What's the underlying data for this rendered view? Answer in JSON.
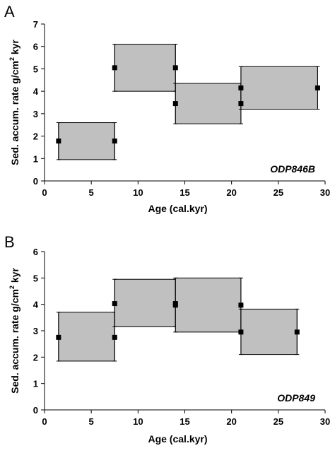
{
  "chart_data": [
    {
      "type": "box",
      "panel": "A",
      "site_label": "ODP846B",
      "xlabel": "Age (cal.kyr)",
      "ylabel_main": "Sed. accum. rate g/cm",
      "ylabel_sup": "2",
      "ylabel_tail": " kyr",
      "xlim": [
        0,
        30
      ],
      "ylim": [
        0,
        7
      ],
      "x_ticks": [
        "0",
        "5",
        "10",
        "15",
        "20",
        "25",
        "30"
      ],
      "y_ticks": [
        "0",
        "1",
        "2",
        "3",
        "4",
        "5",
        "6",
        "7"
      ],
      "boxes": [
        {
          "x0": 1.5,
          "x1": 7.5,
          "low": 0.95,
          "high": 2.6,
          "mid": 1.78
        },
        {
          "x0": 7.5,
          "x1": 14.0,
          "low": 4.0,
          "high": 6.1,
          "mid": 5.05
        },
        {
          "x0": 14.0,
          "x1": 21.0,
          "low": 2.55,
          "high": 4.35,
          "mid": 3.45
        },
        {
          "x0": 21.0,
          "x1": 29.2,
          "low": 3.2,
          "high": 5.1,
          "mid": 4.15
        }
      ],
      "points": [
        {
          "x": 1.5,
          "y": 1.78
        },
        {
          "x": 7.5,
          "y": 1.78
        },
        {
          "x": 7.5,
          "y": 5.05
        },
        {
          "x": 14.0,
          "y": 5.05
        },
        {
          "x": 14.0,
          "y": 3.45
        },
        {
          "x": 21.0,
          "y": 3.45
        },
        {
          "x": 21.0,
          "y": 4.15
        },
        {
          "x": 29.2,
          "y": 4.15
        }
      ]
    },
    {
      "type": "box",
      "panel": "B",
      "site_label": "ODP849",
      "xlabel": "Age (cal.kyr)",
      "ylabel_main": "Sed. accum. rate g/cm",
      "ylabel_sup": "2",
      "ylabel_tail": " kyr",
      "xlim": [
        0,
        30
      ],
      "ylim": [
        0,
        6
      ],
      "x_ticks": [
        "0",
        "5",
        "10",
        "15",
        "20",
        "25",
        "30"
      ],
      "y_ticks": [
        "0",
        "1",
        "2",
        "3",
        "4",
        "5",
        "6"
      ],
      "boxes": [
        {
          "x0": 1.5,
          "x1": 7.5,
          "low": 1.85,
          "high": 3.7,
          "mid": 2.75
        },
        {
          "x0": 7.5,
          "x1": 14.0,
          "low": 3.15,
          "high": 4.95,
          "mid": 4.03
        },
        {
          "x0": 14.0,
          "x1": 21.0,
          "low": 2.95,
          "high": 5.0,
          "mid": 3.97
        },
        {
          "x0": 21.0,
          "x1": 27.0,
          "low": 2.1,
          "high": 3.82,
          "mid": 2.95
        }
      ],
      "points": [
        {
          "x": 1.5,
          "y": 2.75
        },
        {
          "x": 7.5,
          "y": 2.75
        },
        {
          "x": 7.5,
          "y": 4.03
        },
        {
          "x": 14.0,
          "y": 4.03
        },
        {
          "x": 14.0,
          "y": 3.97
        },
        {
          "x": 21.0,
          "y": 3.97
        },
        {
          "x": 21.0,
          "y": 2.95
        },
        {
          "x": 27.0,
          "y": 2.95
        }
      ]
    }
  ],
  "colors": {
    "box_fill": "#c0c0c0",
    "box_stroke": "#000000",
    "marker": "#000000",
    "axis": "#000000"
  }
}
